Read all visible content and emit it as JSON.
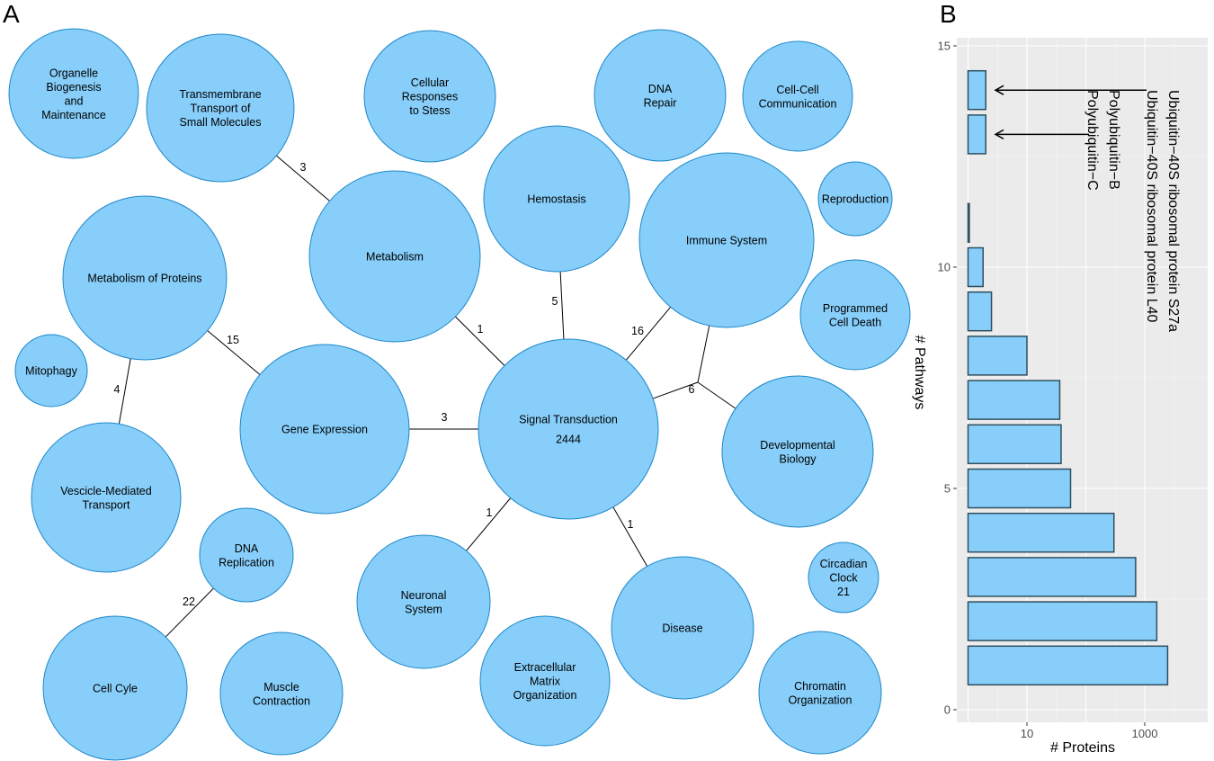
{
  "panels": {
    "a": "A",
    "b": "B"
  },
  "colors": {
    "node_fill": "#87cefa",
    "node_stroke": "#1e88c8",
    "bar_fill": "#87cefa",
    "bar_stroke": "#2f4f5f",
    "panel_bg": "#ebebeb"
  },
  "chart_data": [
    {
      "type": "network",
      "nodes": [
        {
          "id": "organelle",
          "lines": [
            "Organelle",
            "Biogenesis",
            "and",
            "Maintenance"
          ]
        },
        {
          "id": "transmembrane",
          "lines": [
            "Transmembrane",
            "Transport of",
            "Small Molecules"
          ]
        },
        {
          "id": "cellular",
          "lines": [
            "Cellular",
            "Responses",
            "to Stess"
          ]
        },
        {
          "id": "dna_repair",
          "lines": [
            "DNA",
            "Repair"
          ]
        },
        {
          "id": "cell_cell",
          "lines": [
            "Cell-Cell",
            "Communication"
          ]
        },
        {
          "id": "hemostasis",
          "lines": [
            "Hemostasis"
          ]
        },
        {
          "id": "immune",
          "lines": [
            "Immune System"
          ]
        },
        {
          "id": "reproduction",
          "lines": [
            "Reproduction"
          ]
        },
        {
          "id": "metabolism",
          "lines": [
            "Metabolism"
          ]
        },
        {
          "id": "met_proteins",
          "lines": [
            "Metabolism of Proteins"
          ]
        },
        {
          "id": "programmed",
          "lines": [
            "Programmed",
            "Cell Death"
          ]
        },
        {
          "id": "mitophagy",
          "lines": [
            "Mitophagy"
          ]
        },
        {
          "id": "gene_expr",
          "lines": [
            "Gene Expression"
          ]
        },
        {
          "id": "signal",
          "lines": [
            "Signal Transduction",
            "2444"
          ]
        },
        {
          "id": "developmental",
          "lines": [
            "Developmental",
            "Biology"
          ]
        },
        {
          "id": "vesicle",
          "lines": [
            "Vescicle-Mediated",
            "Transport"
          ]
        },
        {
          "id": "dna_repl",
          "lines": [
            "DNA",
            "Replication"
          ]
        },
        {
          "id": "circadian",
          "lines": [
            "Circadian",
            "Clock",
            "21"
          ]
        },
        {
          "id": "neuronal",
          "lines": [
            "Neuronal",
            "System"
          ]
        },
        {
          "id": "disease",
          "lines": [
            "Disease"
          ]
        },
        {
          "id": "cell_cycle",
          "lines": [
            "Cell Cyle"
          ]
        },
        {
          "id": "muscle",
          "lines": [
            "Muscle",
            "Contraction"
          ]
        },
        {
          "id": "ecm",
          "lines": [
            "Extracellular",
            "Matrix",
            "Organization"
          ]
        },
        {
          "id": "chromatin",
          "lines": [
            "Chromatin",
            "Organization"
          ]
        }
      ],
      "edges": [
        {
          "from": "transmembrane",
          "to": "metabolism",
          "label": "3"
        },
        {
          "from": "metabolism",
          "to": "signal",
          "label": "1"
        },
        {
          "from": "hemostasis",
          "to": "signal",
          "label": "5"
        },
        {
          "from": "immune",
          "to": "signal",
          "label": "16"
        },
        {
          "from": "signal",
          "to": "junction",
          "label": "6"
        },
        {
          "from": "junction",
          "to": "immune",
          "label": ""
        },
        {
          "from": "junction",
          "to": "developmental",
          "label": ""
        },
        {
          "from": "met_proteins",
          "to": "gene_expr",
          "label": "15"
        },
        {
          "from": "met_proteins",
          "to": "vesicle",
          "label": "4"
        },
        {
          "from": "gene_expr",
          "to": "signal",
          "label": "3"
        },
        {
          "from": "signal",
          "to": "neuronal",
          "label": "1"
        },
        {
          "from": "signal",
          "to": "disease",
          "label": "1"
        },
        {
          "from": "dna_repl",
          "to": "cell_cycle",
          "label": "22"
        }
      ]
    },
    {
      "type": "bar",
      "orientation": "horizontal",
      "xlabel": "# Proteins",
      "ylabel": "# Pathways",
      "x_scale": "log10",
      "xlim": [
        1,
        3000
      ],
      "ylim": [
        0,
        15
      ],
      "x_ticks": [
        10,
        1000
      ],
      "y_ticks": [
        0,
        5,
        10,
        15
      ],
      "grid": true,
      "bars": [
        {
          "y": 1,
          "value": 2444
        },
        {
          "y": 2,
          "value": 1600
        },
        {
          "y": 3,
          "value": 700
        },
        {
          "y": 4,
          "value": 300
        },
        {
          "y": 5,
          "value": 55
        },
        {
          "y": 6,
          "value": 38
        },
        {
          "y": 7,
          "value": 36
        },
        {
          "y": 8,
          "value": 10
        },
        {
          "y": 9,
          "value": 2.5
        },
        {
          "y": 10,
          "value": 1.8
        },
        {
          "y": 11,
          "value": 1.05
        },
        {
          "y": 13,
          "value": 2
        },
        {
          "y": 14,
          "value": 2
        }
      ],
      "annotations": [
        {
          "y": 14,
          "text": "Ubiquitin−40S ribosomal protein S27a"
        },
        {
          "y": 14,
          "text": "Ubiquitin−40S ribosomal protein L40"
        },
        {
          "y": 13,
          "text": "Polyubiquitin−B"
        },
        {
          "y": 13,
          "text": "Polyubiquitin−C"
        }
      ]
    }
  ]
}
